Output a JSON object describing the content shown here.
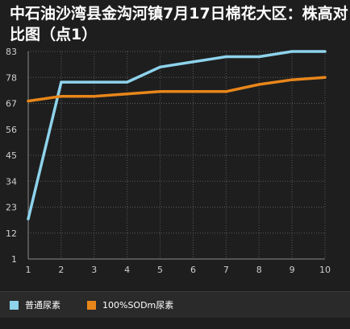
{
  "chart_data": {
    "type": "line",
    "title": "中石油沙湾县金沟河镇7月17日棉花大区：株高对比图（点1）",
    "xlabel": "",
    "ylabel": "",
    "x": [
      1,
      2,
      3,
      4,
      5,
      6,
      7,
      8,
      9,
      10
    ],
    "x_ticks": [
      "1",
      "2",
      "3",
      "4",
      "5",
      "6",
      "7",
      "8",
      "9",
      "10"
    ],
    "y_ticks": [
      "1",
      "12",
      "23",
      "34",
      "45",
      "56",
      "67",
      "78",
      "83"
    ],
    "y_tick_values": [
      1,
      12,
      23,
      34,
      45,
      56,
      67,
      78,
      83
    ],
    "grid": true,
    "legend_position": "bottom",
    "series": [
      {
        "name": "普通尿素",
        "color": "#8ed3ec",
        "values": [
          18,
          76,
          76,
          76,
          80,
          81,
          82,
          82,
          83,
          83
        ]
      },
      {
        "name": "100%SODm尿素",
        "color": "#e8861a",
        "values": [
          68,
          70,
          70,
          71,
          72,
          72,
          72,
          75,
          77,
          78
        ]
      }
    ]
  }
}
